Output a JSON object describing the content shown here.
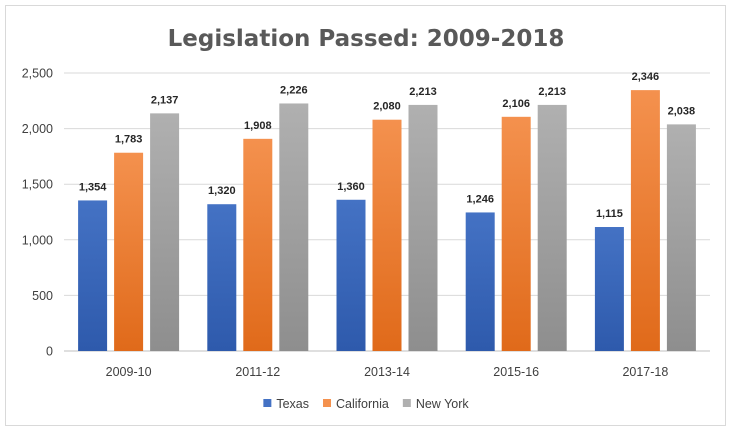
{
  "chart_data": {
    "type": "bar",
    "title": "Legislation Passed: 2009-2018",
    "categories": [
      "2009-10",
      "2011-12",
      "2013-14",
      "2015-16",
      "2017-18"
    ],
    "series": [
      {
        "name": "Texas",
        "values": [
          1354,
          1320,
          1360,
          1246,
          1115
        ],
        "labels": [
          "1,354",
          "1,320",
          "1,360",
          "1,246",
          "1,115"
        ]
      },
      {
        "name": "California",
        "values": [
          1783,
          1908,
          2080,
          2106,
          2346
        ],
        "labels": [
          "1,783",
          "1,908",
          "2,080",
          "2,106",
          "2,346"
        ]
      },
      {
        "name": "New York",
        "values": [
          2137,
          2226,
          2213,
          2213,
          2038
        ],
        "labels": [
          "2,137",
          "2,226",
          "2,213",
          "2,213",
          "2,038"
        ]
      }
    ],
    "yticks": [
      0,
      500,
      1000,
      1500,
      2000,
      2500
    ],
    "ytick_labels": [
      "0",
      "500",
      "1,000",
      "1,500",
      "2,000",
      "2,500"
    ],
    "ylim": [
      0,
      2500
    ],
    "xlabel": "",
    "ylabel": "",
    "grid": true,
    "legend_position": "bottom",
    "colors": {
      "Texas": [
        "#4472c4",
        "#2e5aac"
      ],
      "California": [
        "#f4914e",
        "#e06a1a"
      ],
      "New York": [
        "#b0b0b0",
        "#8e8e8e"
      ],
      "gridline": "#d9d9d9",
      "axis": "#bfbfbf"
    }
  }
}
